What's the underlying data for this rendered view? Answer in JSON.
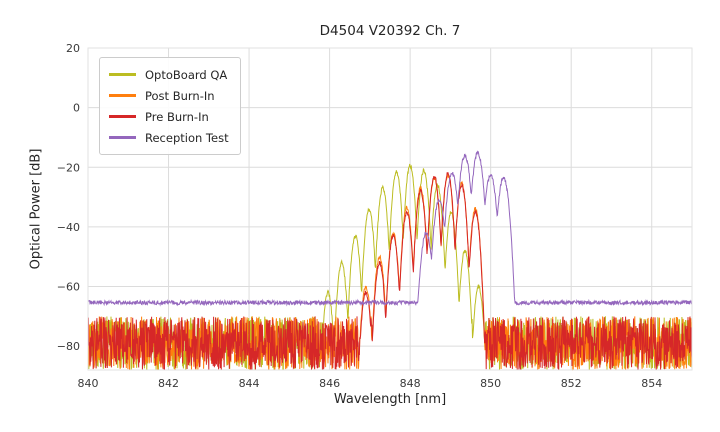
{
  "chart_data": {
    "type": "line",
    "title": "D4504 V20392 Ch. 7",
    "xlabel": "Wavelength [nm]",
    "ylabel": "Optical Power [dB]",
    "xlim": [
      840,
      855
    ],
    "ylim": [
      -88,
      20
    ],
    "grid": true,
    "grid_color": "#dcdcdc",
    "background_color": "#ffffff",
    "legend_position": "upper left",
    "xticks": [
      {
        "value": 840,
        "label": "840"
      },
      {
        "value": 842,
        "label": "842"
      },
      {
        "value": 844,
        "label": "844"
      },
      {
        "value": 846,
        "label": "846"
      },
      {
        "value": 848,
        "label": "848"
      },
      {
        "value": 850,
        "label": "850"
      },
      {
        "value": 852,
        "label": "852"
      },
      {
        "value": 854,
        "label": "854"
      }
    ],
    "yticks": [
      {
        "value": 20,
        "label": "20"
      },
      {
        "value": 0,
        "label": "0"
      },
      {
        "value": -20,
        "label": "−20"
      },
      {
        "value": -40,
        "label": "−40"
      },
      {
        "value": -60,
        "label": "−60"
      },
      {
        "value": -80,
        "label": "−80"
      }
    ],
    "series": [
      {
        "name": "OptoBoard QA",
        "color": "#bcbd22",
        "noise_floor_db": -79,
        "noise_amp_db": 9,
        "comb_depth_db": 24,
        "half_spacing_nm": 0.17,
        "modes_nm_db": [
          [
            845.96,
            -62
          ],
          [
            846.3,
            -52
          ],
          [
            846.64,
            -43
          ],
          [
            846.98,
            -34
          ],
          [
            847.32,
            -27
          ],
          [
            847.66,
            -21.5
          ],
          [
            848.0,
            -19.5
          ],
          [
            848.34,
            -21
          ],
          [
            848.68,
            -26
          ],
          [
            849.02,
            -35
          ],
          [
            849.36,
            -48
          ],
          [
            849.7,
            -60
          ]
        ]
      },
      {
        "name": "Post Burn-In",
        "color": "#ff7f0e",
        "noise_floor_db": -79,
        "noise_amp_db": 9,
        "comb_depth_db": 24,
        "half_spacing_nm": 0.17,
        "modes_nm_db": [
          [
            846.9,
            -60
          ],
          [
            847.24,
            -50
          ],
          [
            847.58,
            -42
          ],
          [
            847.92,
            -33.5
          ],
          [
            848.26,
            -27
          ],
          [
            848.6,
            -23.5
          ],
          [
            848.94,
            -22.5
          ],
          [
            849.28,
            -25.5
          ],
          [
            849.62,
            -34
          ]
        ]
      },
      {
        "name": "Pre Burn-In",
        "color": "#d62728",
        "noise_floor_db": -79,
        "noise_amp_db": 9,
        "comb_depth_db": 24,
        "half_spacing_nm": 0.17,
        "modes_nm_db": [
          [
            846.9,
            -62
          ],
          [
            847.24,
            -52
          ],
          [
            847.58,
            -43
          ],
          [
            847.92,
            -35
          ],
          [
            848.26,
            -28
          ],
          [
            848.6,
            -23
          ],
          [
            848.94,
            -22
          ],
          [
            849.28,
            -26
          ],
          [
            849.62,
            -35
          ]
        ]
      },
      {
        "name": "Reception Test",
        "color": "#9467bd",
        "noise_floor_db": -65.4,
        "noise_amp_db": 0.7,
        "comb_depth_db": 14,
        "half_spacing_nm": 0.16,
        "modes_nm_db": [
          [
            848.4,
            -42
          ],
          [
            848.72,
            -31
          ],
          [
            849.04,
            -22
          ],
          [
            849.36,
            -16
          ],
          [
            849.68,
            -15.2
          ],
          [
            850.0,
            -22.5
          ],
          [
            850.32,
            -23.5
          ]
        ]
      }
    ]
  }
}
